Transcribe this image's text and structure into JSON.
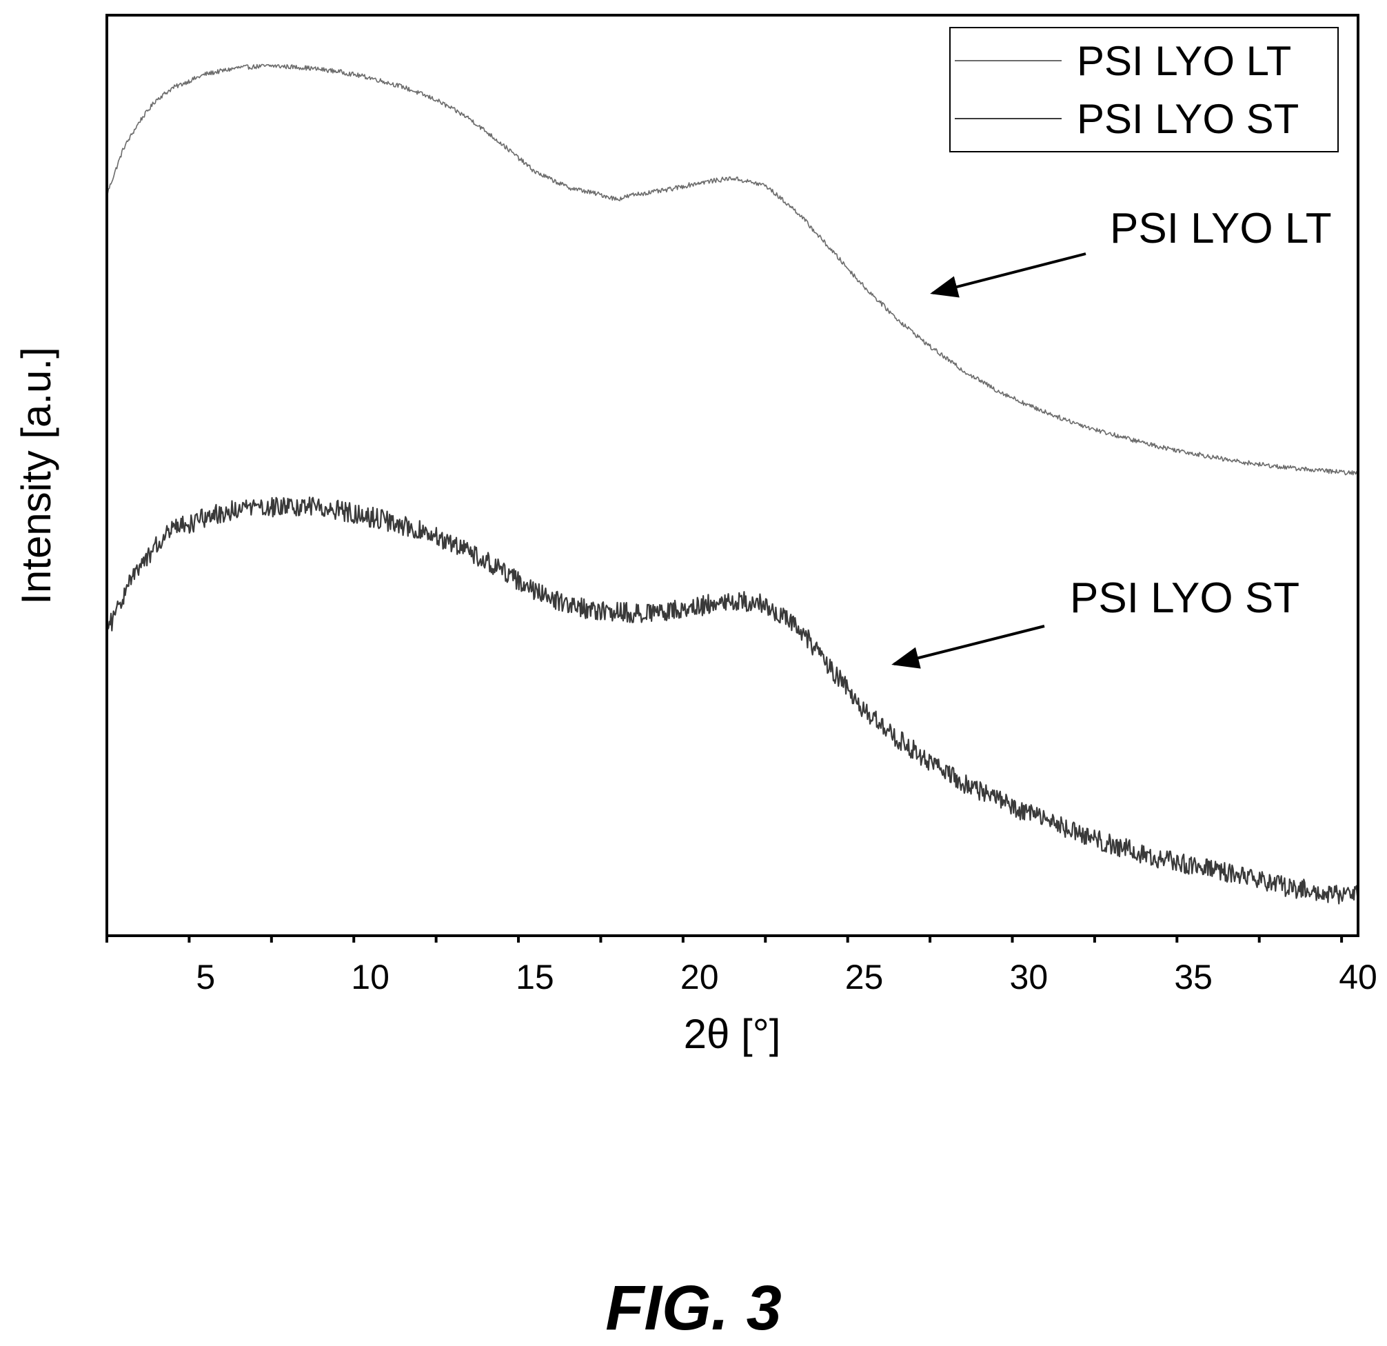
{
  "chart_data": {
    "type": "line",
    "title": "",
    "xlabel": "2θ [°]",
    "ylabel": "Intensity [a.u.]",
    "xlim": [
      2,
      40
    ],
    "ylim": [
      0,
      1
    ],
    "xticks": [
      5,
      10,
      15,
      20,
      25,
      30,
      35,
      40
    ],
    "yticks": [],
    "grid": false,
    "legend_position": "top-right",
    "series": [
      {
        "name": "PSI LYO LT",
        "color": "#6b6b6b",
        "x": [
          2,
          2.5,
          3,
          3.5,
          4,
          5,
          6,
          7,
          8,
          9,
          10,
          11,
          12,
          13,
          14,
          15,
          16,
          17,
          17.5,
          18,
          19,
          20,
          21,
          22,
          23,
          24,
          25,
          26,
          27,
          28,
          29,
          30,
          31,
          32,
          33,
          34,
          35,
          36,
          37,
          38,
          39,
          40
        ],
        "y": [
          0.805,
          0.855,
          0.885,
          0.908,
          0.921,
          0.936,
          0.943,
          0.945,
          0.943,
          0.939,
          0.932,
          0.922,
          0.908,
          0.888,
          0.86,
          0.83,
          0.813,
          0.805,
          0.8,
          0.805,
          0.81,
          0.818,
          0.823,
          0.815,
          0.785,
          0.745,
          0.705,
          0.67,
          0.64,
          0.614,
          0.593,
          0.576,
          0.562,
          0.55,
          0.54,
          0.531,
          0.524,
          0.517,
          0.512,
          0.508,
          0.505,
          0.502
        ]
      },
      {
        "name": "PSI LYO ST",
        "color": "#3a3a3a",
        "x": [
          2,
          2.5,
          3,
          3.5,
          4,
          5,
          6,
          7,
          8,
          9,
          10,
          11,
          12,
          13,
          14,
          15,
          16,
          17,
          18,
          19,
          20,
          21,
          22,
          23,
          24,
          25,
          26,
          27,
          28,
          29,
          30,
          31,
          32,
          33,
          34,
          35,
          36,
          37,
          38,
          39,
          40
        ],
        "y": [
          0.33,
          0.37,
          0.4,
          0.425,
          0.44,
          0.455,
          0.463,
          0.466,
          0.466,
          0.463,
          0.455,
          0.446,
          0.434,
          0.418,
          0.397,
          0.375,
          0.36,
          0.352,
          0.351,
          0.353,
          0.358,
          0.365,
          0.36,
          0.335,
          0.29,
          0.245,
          0.215,
          0.188,
          0.165,
          0.148,
          0.133,
          0.118,
          0.105,
          0.094,
          0.084,
          0.076,
          0.068,
          0.06,
          0.052,
          0.047,
          0.043
        ]
      }
    ],
    "annotations": [
      {
        "text": "PSI LYO LT",
        "target_x": 26.5,
        "target_y": 0.7
      },
      {
        "text": "PSI LYO ST",
        "target_x": 25.5,
        "target_y": 0.298
      }
    ]
  },
  "caption": "FIG. 3"
}
